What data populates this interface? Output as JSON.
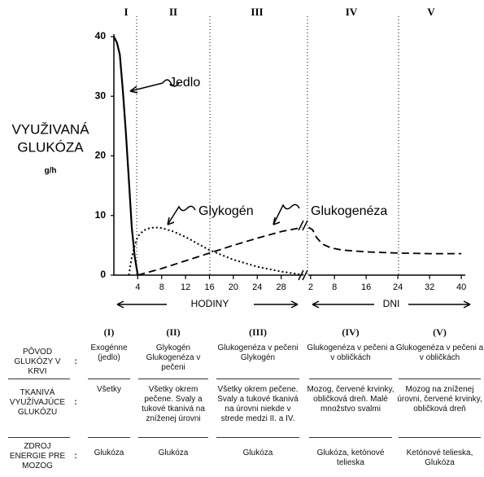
{
  "chart_data": [
    {
      "type": "line",
      "phases": [
        "I",
        "II",
        "III",
        "IV",
        "V"
      ],
      "y_label": [
        "VYUŽIVANÁ",
        "GLUKÓZA"
      ],
      "y_unit": "g/h",
      "x_label": "HODINY",
      "xlim": [
        0,
        32
      ],
      "xticks": [
        4,
        8,
        12,
        16,
        20,
        24,
        28
      ],
      "ylim": [
        0,
        40
      ],
      "yticks": [
        0,
        10,
        20,
        30,
        40
      ],
      "series": [
        {
          "name": "Jedlo",
          "color": "#000000",
          "x": [
            0,
            0.5,
            1,
            1.5,
            2,
            2.5,
            3,
            3.5,
            4
          ],
          "values": [
            40,
            39,
            37,
            31,
            24,
            16,
            8,
            3,
            0
          ]
        },
        {
          "name": "Glykogén",
          "color": "#000000",
          "x": [
            2.5,
            3,
            3.5,
            4,
            5,
            6,
            7,
            8,
            10,
            12,
            14,
            16,
            20,
            24,
            28,
            32
          ],
          "values": [
            0,
            3,
            5,
            6.5,
            7.5,
            7.9,
            8,
            7.9,
            7.3,
            6.4,
            5.3,
            4.2,
            2.6,
            1.4,
            0.6,
            0
          ]
        },
        {
          "name": "Glukogenéza",
          "color": "#000000",
          "x": [
            4,
            8,
            12,
            16,
            20,
            24,
            28,
            31.5
          ],
          "values": [
            0,
            1.1,
            2.4,
            3.7,
            5,
            6.2,
            7.3,
            8
          ]
        }
      ]
    },
    {
      "type": "line",
      "x_label": "DNI",
      "xlim": [
        1,
        41
      ],
      "xticks": [
        2,
        8,
        16,
        24,
        32,
        40
      ],
      "series": [
        {
          "color": "#000000",
          "x": [
            1.5,
            2.5,
            3.5,
            5,
            7,
            10,
            16,
            24,
            32,
            40
          ],
          "values": [
            8,
            7.6,
            6.3,
            5.2,
            4.6,
            4.2,
            3.9,
            3.7,
            3.6,
            3.6
          ]
        }
      ]
    }
  ],
  "table": {
    "separator": ":",
    "columns": [
      "(I)",
      "(II)",
      "(III)",
      "(IV)",
      "(V)"
    ],
    "rows": [
      {
        "label": "PÔVOD GLUKÓZY V KRVI",
        "cells": [
          "Exogénne (jedlo)",
          "Glykogén Glukogenéza v pečeni",
          "Glukogenéza v pečeni Glykogén",
          "Glukogenéza v pečeni a v obličkách",
          "Glukogenéza v pečeni a v obličkách"
        ]
      },
      {
        "label": "TKANIVÁ VYUŽÍVAJÚCE GLUKÓZU",
        "cells": [
          "Všetky",
          "Všetky okrem pečene. Svaly a tukové tkanivá na zníženej úrovni",
          "Všetky okrem pečene. Svaly a tukové tkanivá na úrovni niekde v strede medzi II. a IV.",
          "Mozog, červené krvinky, obličková dreň. Malé množstvo svalmi",
          "Mozog na zníženej úrovni, červené krvinky, obličková dreň"
        ]
      },
      {
        "label": "ZDROJ ENERGIE PRE MOZOG",
        "cells": [
          "Glukóza",
          "Glukóza",
          "Glukóza",
          "Glukóza, ketónové telieska",
          "Ketónové telieska, Glukóza"
        ]
      }
    ]
  }
}
